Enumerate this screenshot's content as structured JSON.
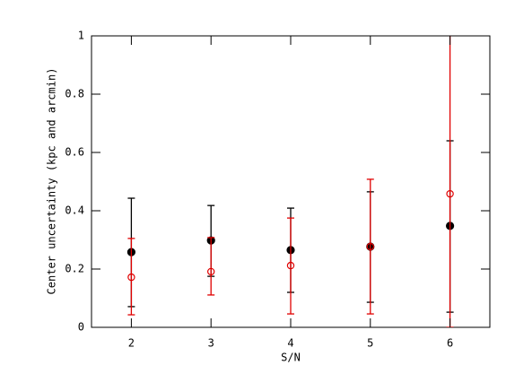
{
  "chart_data": {
    "type": "errorbar-scatter",
    "xlabel": "S/N",
    "ylabel": "Center uncertainty (kpc and arcmin)",
    "x": [
      2,
      3,
      4,
      5,
      6
    ],
    "xlim": [
      1.5,
      6.5
    ],
    "xticks": [
      2,
      3,
      4,
      5,
      6
    ],
    "ylim": [
      0,
      1
    ],
    "yticks": [
      0,
      0.2,
      0.4,
      0.6,
      0.8,
      1
    ],
    "series": [
      {
        "color": "#000000",
        "marker": "filled",
        "values": [
          0.258,
          0.298,
          0.265,
          0.277,
          0.348
        ],
        "low": [
          0.071,
          0.175,
          0.12,
          0.086,
          0.052
        ],
        "high": [
          0.443,
          0.418,
          0.409,
          0.465,
          0.64
        ]
      },
      {
        "color": "#e00000",
        "marker": "open",
        "values": [
          0.172,
          0.191,
          0.212,
          0.277,
          0.458
        ],
        "low": [
          0.043,
          0.111,
          0.046,
          0.046,
          0.0
        ],
        "high": [
          0.305,
          0.308,
          0.375,
          0.508,
          1.05
        ]
      }
    ]
  }
}
